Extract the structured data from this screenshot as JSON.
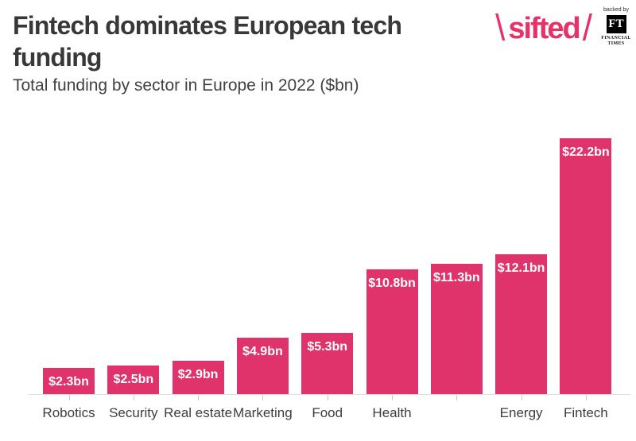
{
  "header": {
    "title_line1": "Fintech dominates European tech",
    "title_line2": "funding",
    "subtitle": "Total funding by sector in Europe in 2022 ($bn)"
  },
  "branding": {
    "logo_slash_left": "\\",
    "logo_text": "sifted",
    "logo_slash_right": "/",
    "logo_color": "#E73169",
    "backed_by": "backed by",
    "ft_initials": "FT",
    "ft_name_line1": "FINANCIAL",
    "ft_name_line2": "TIMES"
  },
  "chart_data": {
    "type": "bar",
    "title": "Fintech dominates European tech funding",
    "subtitle": "Total funding by sector in Europe in 2022 ($bn)",
    "categories": [
      "Robotics",
      "Security",
      "Real estate",
      "Marketing",
      "Food",
      "Health",
      "",
      "Energy",
      "Fintech"
    ],
    "values": [
      2.3,
      2.5,
      2.9,
      4.9,
      5.3,
      10.8,
      11.3,
      12.1,
      22.2
    ],
    "value_labels": [
      "$2.3bn",
      "$2.5bn",
      "$2.9bn",
      "$4.9bn",
      "$5.3bn",
      "$10.8bn",
      "$11.3bn",
      "$12.1bn",
      "$22.2bn"
    ],
    "xlabel": "",
    "ylabel": "",
    "ylim": [
      0,
      23
    ],
    "grid": false,
    "legend": false,
    "bar_color": "#E0336C",
    "value_label_color": "#FFFFFF",
    "axis_color": "#DEDEDE"
  }
}
